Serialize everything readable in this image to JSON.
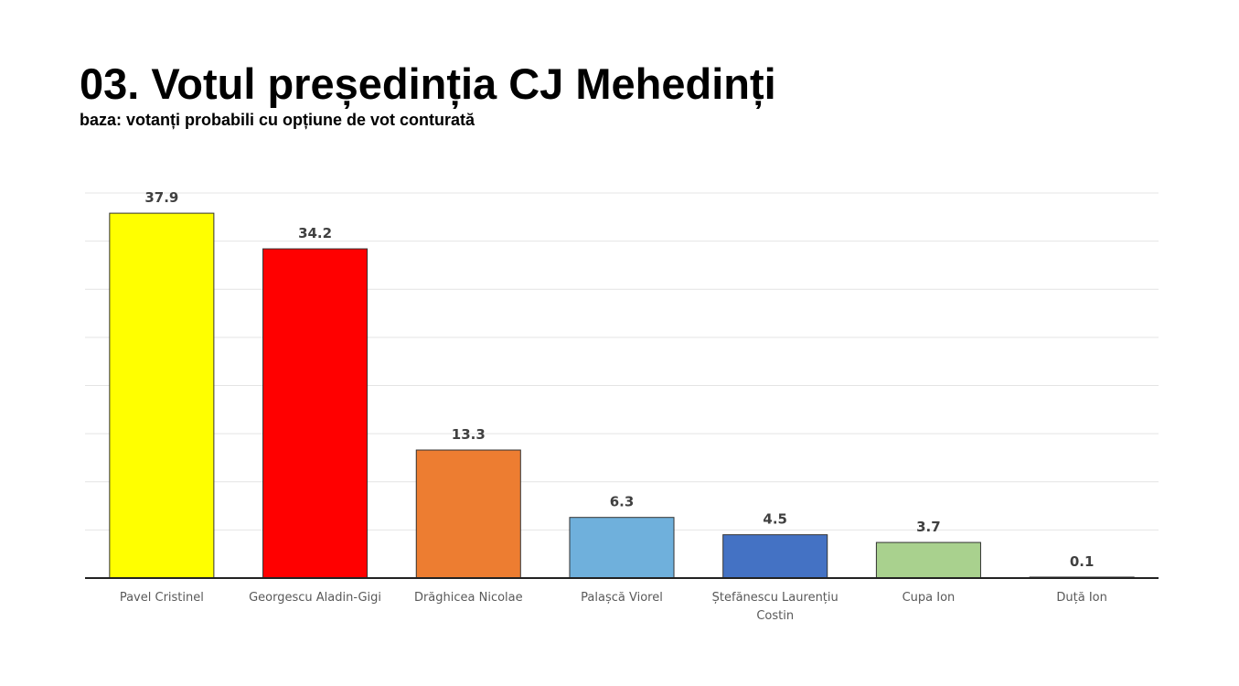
{
  "chart_data": {
    "type": "bar",
    "title": "03. Votul președinția CJ Mehedinți",
    "subtitle": "baza: votanți probabili cu opțiune de vot conturată",
    "categories": [
      "Pavel Cristinel",
      "Georgescu Aladin-Gigi",
      "Drăghicea Nicolae",
      "Palașcă Viorel",
      "Ștefănescu Laurențiu Costin",
      "Cupa Ion",
      "Duță Ion"
    ],
    "values": [
      37.9,
      34.2,
      13.3,
      6.3,
      4.5,
      3.7,
      0.1
    ],
    "colors": [
      "#ffff00",
      "#ff0000",
      "#ed7d31",
      "#6fb0dc",
      "#4472c4",
      "#a9d18e",
      "#404040"
    ],
    "ylim": [
      0,
      40
    ],
    "yticks": [
      0,
      5,
      10,
      15,
      20,
      25,
      30,
      35,
      40
    ],
    "grid": true
  }
}
